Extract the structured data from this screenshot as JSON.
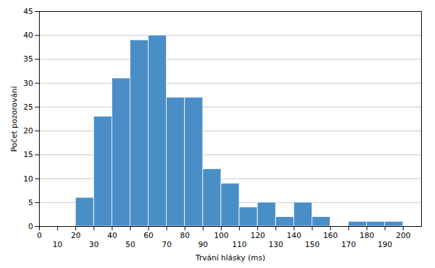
{
  "chart_data": {
    "type": "histogram",
    "bins": [
      20,
      30,
      40,
      50,
      60,
      70,
      80,
      90,
      100,
      110,
      120,
      130,
      140,
      150,
      160,
      170,
      180,
      190,
      200,
      210
    ],
    "values": [
      6,
      23,
      31,
      39,
      40,
      27,
      27,
      12,
      9,
      4,
      5,
      2,
      5,
      2,
      0,
      1,
      1,
      1,
      0
    ],
    "color": "#4a8ec8",
    "xlabel": "Trvání hlásky (ms)",
    "ylabel": "Počet pozorování",
    "xlim": [
      0,
      210
    ],
    "ylim": [
      0,
      45
    ],
    "xticks": [
      0,
      10,
      20,
      30,
      40,
      50,
      60,
      70,
      80,
      90,
      100,
      110,
      120,
      130,
      140,
      150,
      160,
      170,
      180,
      190,
      200
    ],
    "yticks": [
      0,
      5,
      10,
      15,
      20,
      25,
      30,
      35,
      40,
      45
    ],
    "grid": true
  }
}
